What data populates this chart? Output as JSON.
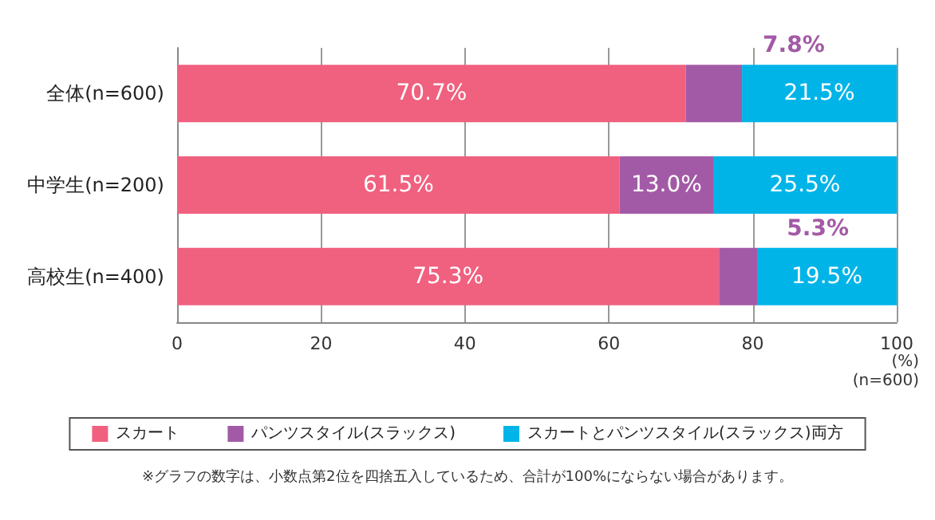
{
  "chart_data": {
    "type": "bar",
    "orientation": "horizontal",
    "stacked": true,
    "categories": [
      "全体(n=600)",
      "中学生(n=200)",
      "高校生(n=400)"
    ],
    "series": [
      {
        "name": "スカート",
        "color": "#f0607f",
        "values": [
          70.7,
          61.5,
          75.3
        ],
        "value_labels": [
          "70.7%",
          "61.5%",
          "75.3%"
        ]
      },
      {
        "name": "パンツスタイル(スラックス)",
        "color": "#a35aa6",
        "values": [
          7.8,
          13.0,
          5.3
        ],
        "value_labels": [
          "7.8%",
          "13.0%",
          "5.3%"
        ]
      },
      {
        "name": "スカートとパンツスタイル(スラックス)両方",
        "color": "#00b4e8",
        "values": [
          21.5,
          25.5,
          19.5
        ],
        "value_labels": [
          "21.5%",
          "25.5%",
          "19.5%"
        ]
      }
    ],
    "xlim": [
      0,
      100
    ],
    "xticks": [
      0,
      20,
      40,
      60,
      80,
      100
    ],
    "xlabel": "(%)",
    "grid": "x",
    "legend": "bottom",
    "annotations": [
      "(n=600)",
      "※グラフの数字は、小数点第2位を四捨五入しているため、合計が100%にならない場合があります。"
    ]
  }
}
